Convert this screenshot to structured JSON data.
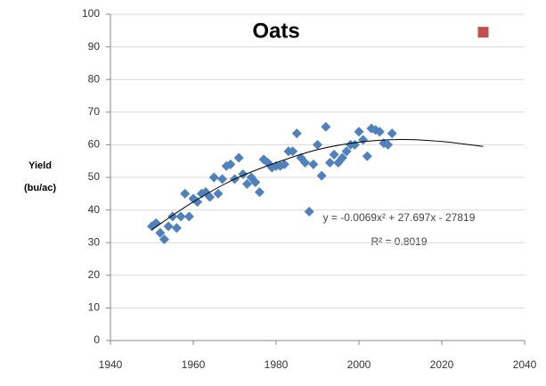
{
  "chart_data": {
    "type": "scatter",
    "title": "Oats",
    "ylabel": [
      "Yield",
      "(bu/ac)"
    ],
    "annotations": [
      "y = -0.0069x² + 27.697x - 27819",
      "R² = 0.8019"
    ],
    "xlim": [
      1940,
      2040
    ],
    "xticks": [
      1940,
      1960,
      1980,
      2000,
      2020,
      2040
    ],
    "ylim": [
      0,
      100
    ],
    "yticks": [
      0,
      10,
      20,
      30,
      40,
      50,
      60,
      70,
      80,
      90,
      100
    ],
    "grid": true,
    "series": [
      {
        "color": "#4f81bd",
        "x": [
          1950,
          1951,
          1952,
          1953,
          1954,
          1955,
          1956,
          1957,
          1958,
          1959,
          1960,
          1961,
          1962,
          1963,
          1964,
          1965,
          1966,
          1967,
          1968,
          1969,
          1970,
          1971,
          1972,
          1973,
          1974,
          1975,
          1976,
          1977,
          1978,
          1979,
          1980,
          1981,
          1982,
          1983,
          1984,
          1985,
          1986,
          1987,
          1988,
          1989,
          1990,
          1991,
          1992,
          1993,
          1994,
          1995,
          1996,
          1997,
          1998,
          1999,
          2000,
          2001,
          2002,
          2003,
          2004,
          2005,
          2006,
          2007,
          2008
        ],
        "values": [
          35,
          36,
          33,
          31,
          35,
          38,
          34.5,
          38,
          45,
          38,
          43.5,
          42.5,
          45,
          45.5,
          44,
          50,
          45,
          49.5,
          53.5,
          54,
          49.5,
          56,
          51,
          48,
          50,
          48.5,
          45.5,
          55.5,
          54.5,
          53,
          53.5,
          53.5,
          54,
          58,
          58,
          63.5,
          56,
          54.5,
          39.5,
          54,
          60,
          50.5,
          65.5,
          54.5,
          57,
          54.5,
          56,
          58,
          60,
          60,
          64,
          61.5,
          56.5,
          65,
          64.5,
          64,
          60.5,
          60,
          63.5
        ]
      }
    ],
    "trendline": {
      "color": "#000000",
      "x": [
        1950,
        1960,
        1970,
        1980,
        1990,
        2000,
        2010,
        2020,
        2030
      ],
      "values": [
        34,
        42.5,
        49.5,
        54.5,
        58.5,
        60.8,
        61.6,
        61,
        59.5
      ]
    },
    "marker": {
      "color": "#c0504d",
      "x": 2030,
      "y": 94.5
    }
  }
}
